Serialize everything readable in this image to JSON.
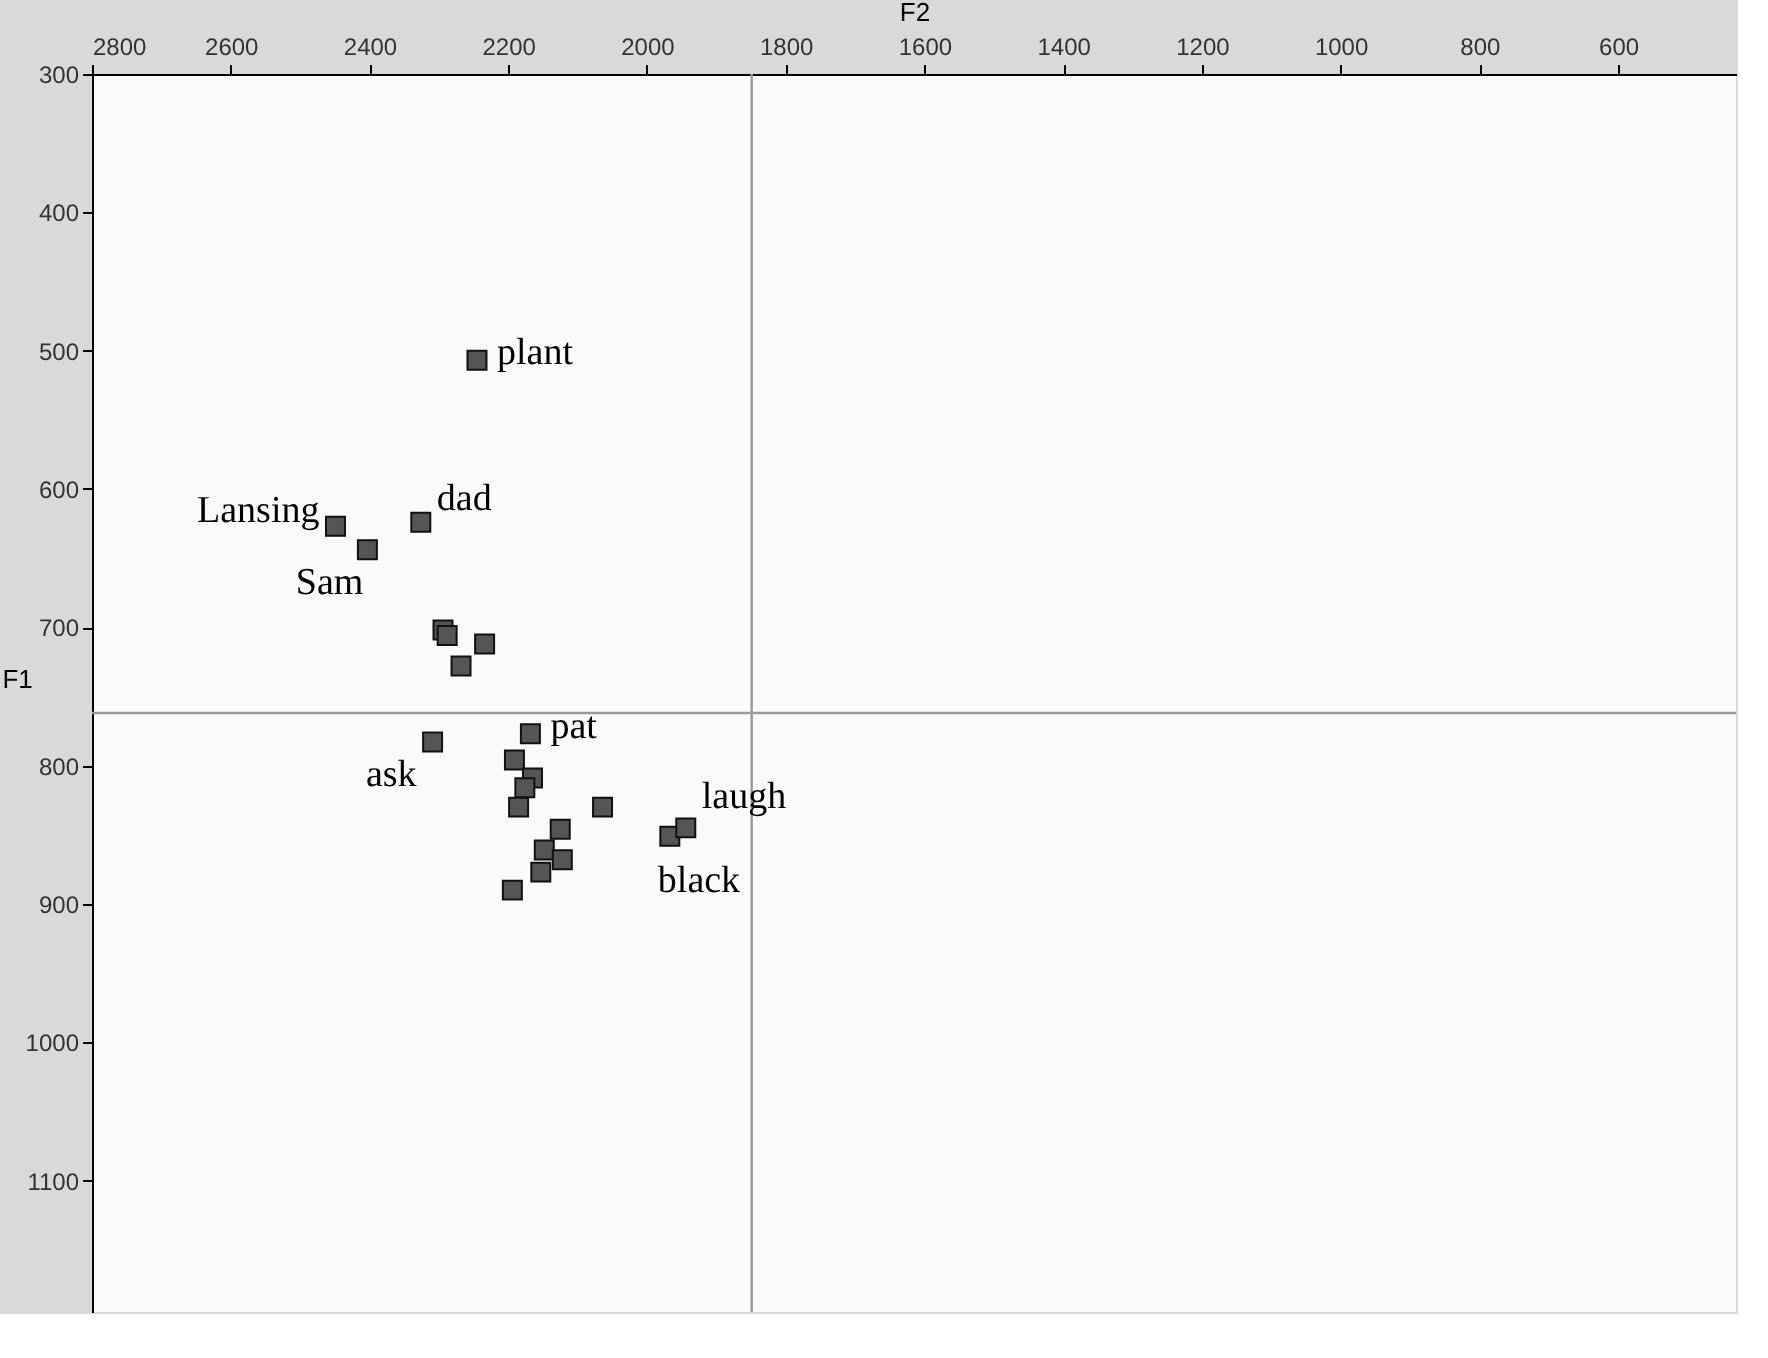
{
  "chart_data": {
    "type": "scatter",
    "xlabel": "F2",
    "ylabel": "F1",
    "xlim": [
      2800,
      430
    ],
    "xticks": [
      2800,
      2600,
      2400,
      2200,
      2000,
      1800,
      1600,
      1400,
      1200,
      1000,
      800,
      600
    ],
    "ylim": [
      1195,
      300
    ],
    "yticks": [
      300,
      400,
      500,
      600,
      700,
      800,
      900,
      1000,
      1100
    ],
    "grid": false,
    "marker": "square",
    "series": [
      {
        "color": "#555555",
        "x": [
          2245,
          2449,
          2403,
          2326,
          2294,
          2288,
          2234,
          2268,
          2309,
          2168,
          2191,
          2165,
          2176,
          2185,
          2064,
          2125,
          2148,
          2122,
          2153,
          2194,
          1967,
          1944
        ],
        "values": [
          507,
          627,
          644,
          624,
          702,
          706,
          712,
          728,
          783,
          777,
          796,
          809,
          816,
          830,
          830,
          846,
          861,
          868,
          877,
          890,
          851,
          845
        ]
      }
    ],
    "ref_lines": [
      {
        "axis": "x",
        "value": 1849,
        "color": "#999999"
      },
      {
        "axis": "y",
        "value": 762,
        "color": "#999999"
      }
    ],
    "annotations": [
      {
        "text": "plant",
        "x": 2245,
        "y": 507
      },
      {
        "text": "Lansing",
        "x": 2449,
        "y": 627
      },
      {
        "text": "Sam",
        "x": 2403,
        "y": 644
      },
      {
        "text": "dad",
        "x": 2326,
        "y": 624
      },
      {
        "text": "ask",
        "x": 2309,
        "y": 783
      },
      {
        "text": "pat",
        "x": 2168,
        "y": 777
      },
      {
        "text": "laugh",
        "x": 1944,
        "y": 845
      },
      {
        "text": "black",
        "x": 1967,
        "y": 851
      }
    ]
  }
}
